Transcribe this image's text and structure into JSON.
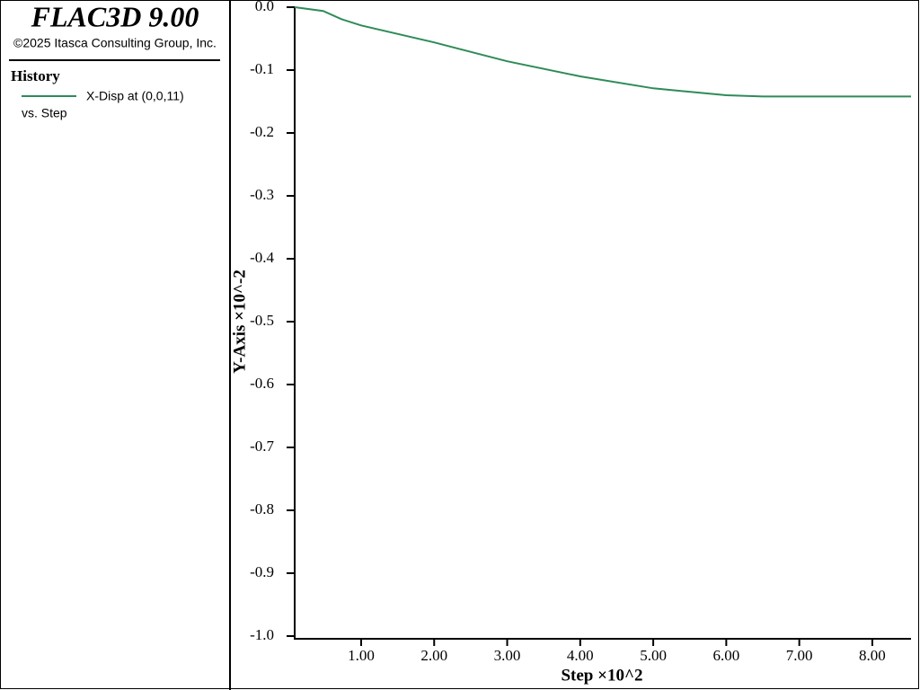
{
  "header": {
    "title": "FLAC3D 9.00",
    "copyright": "©2025 Itasca Consulting Group, Inc."
  },
  "legend": {
    "heading": "History",
    "vs_label": "vs. Step"
  },
  "chart_data": {
    "type": "line",
    "x_label": "Step ×10^2",
    "y_label": "Y-Axis ×10^-2",
    "x": [
      0.09,
      0.48,
      0.73,
      1.0,
      2.0,
      3.0,
      4.0,
      5.0,
      6.0,
      6.5,
      8.0,
      8.53
    ],
    "series": [
      {
        "name": "X-Disp at (0,0,11)",
        "color": "#2e8b57",
        "values": [
          0,
          -0.006,
          -0.019,
          -0.029,
          -0.056,
          -0.086,
          -0.11,
          -0.129,
          -0.14,
          -0.142,
          -0.142,
          -0.142
        ]
      }
    ],
    "xlim": [
      0.09,
      8.53
    ],
    "xticks": [
      {
        "value": 1,
        "label": "1.00"
      },
      {
        "value": 2,
        "label": "2.00"
      },
      {
        "value": 3,
        "label": "3.00"
      },
      {
        "value": 4,
        "label": "4.00"
      },
      {
        "value": 5,
        "label": "5.00"
      },
      {
        "value": 6,
        "label": "6.00"
      },
      {
        "value": 7,
        "label": "7.00"
      },
      {
        "value": 8,
        "label": "8.00"
      }
    ],
    "ylim": [
      -1,
      0
    ],
    "yticks": [
      {
        "value": 0,
        "label": "0.0"
      },
      -0.1,
      -0.2,
      -0.3,
      -0.4,
      -0.5,
      -0.6,
      -0.7,
      -0.8,
      -0.9,
      {
        "value": -1,
        "label": "-1.0"
      }
    ],
    "grid": false
  }
}
